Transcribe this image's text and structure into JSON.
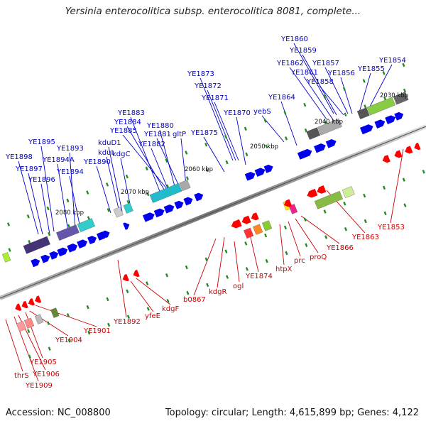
{
  "title": "Yersinia enterocolitica subsp. enterocolitica 8081, complete...",
  "footer": {
    "accession": "Accession: NC_008800",
    "topology": "Topology: circular; Length: 4,615,899 bp; Genes: 4,122"
  },
  "scale_labels": [
    "2030 kbp",
    "2040 kbp",
    "2050 kbp",
    "2060 kbp",
    "2070 kbp",
    "2080 kbp"
  ],
  "top_gene_labels": [
    "YE1860",
    "YE1859",
    "YE1862",
    "YE1861",
    "YE1857",
    "YE1854",
    "YE1858",
    "YE1856",
    "YE1855",
    "YE1873",
    "YE1872",
    "YE1871",
    "YE1864",
    "YE1870",
    "yebS",
    "YE1883",
    "YE1884",
    "YE1885",
    "YE1880",
    "YE1881",
    "YE1882",
    "gltP",
    "YE1875",
    "YE1895",
    "YE1893",
    "YE1894A",
    "YE1894",
    "YE1898",
    "YE1897",
    "YE1896",
    "kduD1",
    "kduI",
    "kdgC",
    "YE1890"
  ],
  "bottom_gene_labels": [
    "YE1853",
    "YE1863",
    "YE1866",
    "proQ",
    "prc",
    "htpX",
    "YE1874",
    "ogl",
    "kdgR",
    "b0867",
    "kdgF",
    "yfeE",
    "YE1892",
    "YE1901",
    "YE1904",
    "YE1905",
    "YE1906",
    "YE1909",
    "thrS"
  ],
  "colors": {
    "forward": "#0000ee",
    "reverse": "#ff0000",
    "top_label": "#0000cc",
    "bottom_label": "#cc0000",
    "backbone": "#888888"
  }
}
